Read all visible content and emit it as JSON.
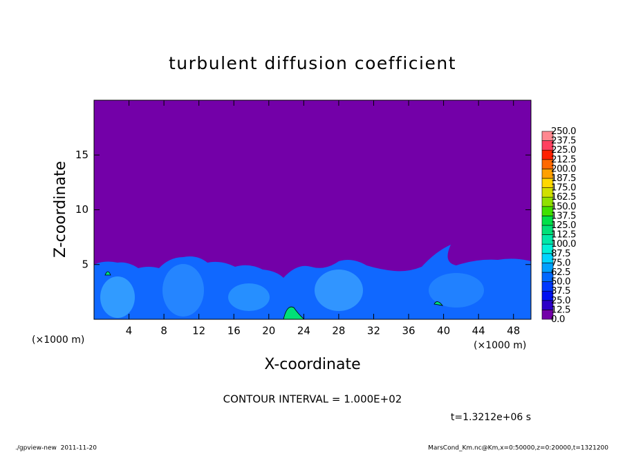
{
  "chart_data": {
    "type": "contour",
    "title": "turbulent diffusion coefficient",
    "xlabel": "X-coordinate",
    "ylabel": "Z-coordinate",
    "unit_labels": [
      "(×1000 m)",
      "(×1000 m)"
    ],
    "xlim": [
      0,
      50
    ],
    "xticks": [
      4,
      8,
      12,
      16,
      20,
      24,
      28,
      32,
      36,
      40,
      44,
      48
    ],
    "ylim": [
      0,
      20
    ],
    "yticks": [
      5,
      10,
      15
    ],
    "colorbar": {
      "ticks": [
        {
          "value": 0,
          "label": "0.0"
        },
        {
          "value": 12.5,
          "label": "12.5"
        },
        {
          "value": 25,
          "label": "25.0"
        },
        {
          "value": 37.5,
          "label": "37.5"
        },
        {
          "value": 50,
          "label": "50.0"
        },
        {
          "value": 62.5,
          "label": "62.5"
        },
        {
          "value": 75,
          "label": "75.0"
        },
        {
          "value": 87.5,
          "label": "87.5"
        },
        {
          "value": 100,
          "label": "100.0"
        },
        {
          "value": 112.5,
          "label": "112.5"
        },
        {
          "value": 125,
          "label": "125.0"
        },
        {
          "value": 137.5,
          "label": "137.5"
        },
        {
          "value": 150,
          "label": "150.0"
        },
        {
          "value": 162.5,
          "label": "162.5"
        },
        {
          "value": 175,
          "label": "175.0"
        },
        {
          "value": 187.5,
          "label": "187.5"
        },
        {
          "value": 200,
          "label": "200.0"
        },
        {
          "value": 212.5,
          "label": "212.5"
        },
        {
          "value": 225,
          "label": "225.0"
        },
        {
          "value": 237.5,
          "label": "237.5"
        },
        {
          "value": 250,
          "label": "250.0"
        }
      ],
      "colors": [
        "#7300a8",
        "#2c00c8",
        "#0010f0",
        "#0038ff",
        "#0068ff",
        "#00a0ff",
        "#00d4ff",
        "#00f0d8",
        "#00e8a8",
        "#00e078",
        "#00e048",
        "#40e000",
        "#90e000",
        "#d0e000",
        "#ffd800",
        "#ffa000",
        "#ff6800",
        "#ff2000",
        "#ff4060",
        "#ff8890"
      ]
    },
    "contour_interval": "CONTOUR INTERVAL = 1.000E+02",
    "time_label": "t=1.3212e+06 s",
    "footer_left": "./gpview-new  2011-11-20",
    "footer_right": "MarsCond_Km.nc@Km,x=0:50000,z=0:20000,t=1321200"
  }
}
